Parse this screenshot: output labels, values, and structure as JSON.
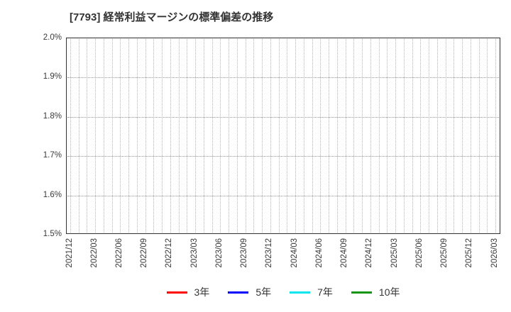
{
  "header": {
    "title": "[7793]  経常利益マージンの標準偏差の推移"
  },
  "chart_data": {
    "type": "line",
    "title": "[7793]  経常利益マージンの標準偏差の推移",
    "xlabel": "",
    "ylabel": "",
    "ylim": [
      1.5,
      2.0
    ],
    "y_unit": "%",
    "y_tick_labels": [
      "1.5%",
      "1.6%",
      "1.7%",
      "1.8%",
      "1.9%",
      "2.0%"
    ],
    "x_tick_labels": [
      "2021/12",
      "2022/03",
      "2022/06",
      "2022/09",
      "2022/12",
      "2023/03",
      "2023/06",
      "2023/09",
      "2023/12",
      "2024/03",
      "2024/06",
      "2024/09",
      "2024/12",
      "2025/03",
      "2025/06",
      "2025/09",
      "2025/12",
      "2026/03"
    ],
    "x_minor_gridlines_per_quarter": 3,
    "grid": true,
    "grid_style": "dotted",
    "legend_position": "bottom-center",
    "plot_is_empty": true,
    "series": [
      {
        "name": "3年",
        "color": "#ff0000",
        "values": []
      },
      {
        "name": "5年",
        "color": "#0000ff",
        "values": []
      },
      {
        "name": "7年",
        "color": "#00e5ee",
        "values": []
      },
      {
        "name": "10年",
        "color": "#149614",
        "values": []
      }
    ]
  }
}
